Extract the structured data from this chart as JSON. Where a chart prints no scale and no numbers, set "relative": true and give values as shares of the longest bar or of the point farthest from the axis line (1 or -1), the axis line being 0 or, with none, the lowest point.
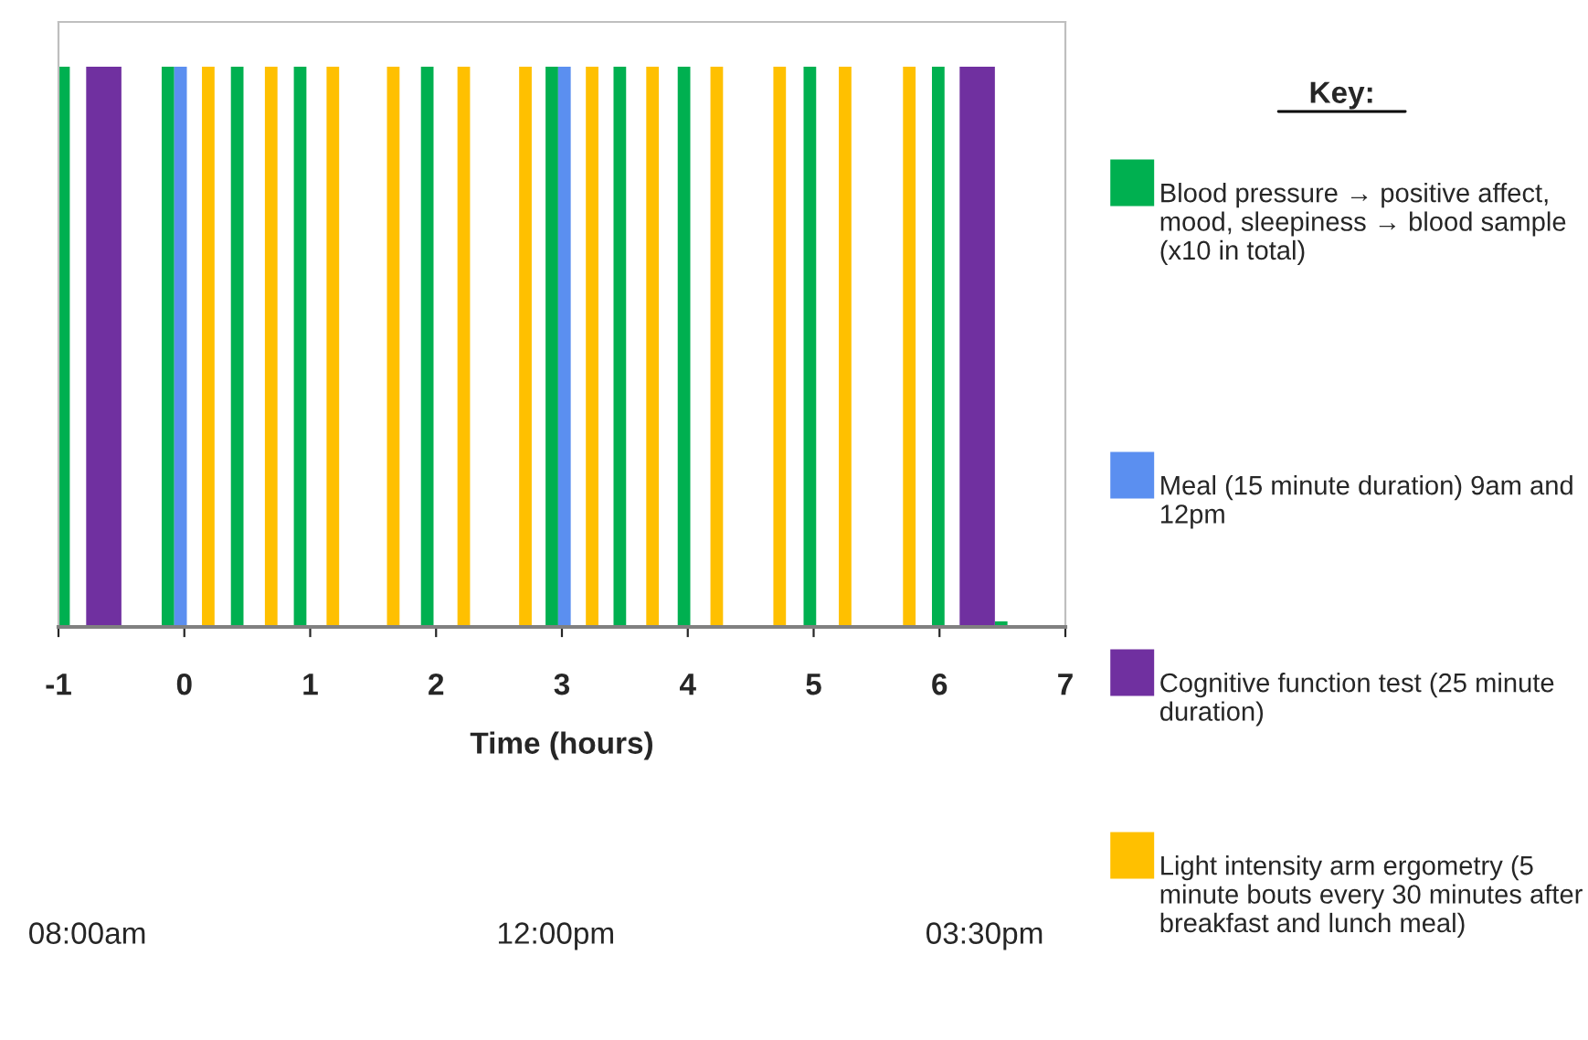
{
  "chart_data": {
    "type": "bar",
    "relative": true,
    "xlabel": "Time (hours)",
    "legend_title": "Key:",
    "legend": "right",
    "xlim": [
      -1,
      7
    ],
    "xticks": [
      -1,
      0,
      1,
      2,
      3,
      4,
      5,
      6,
      7
    ],
    "grid": false,
    "series": [
      {
        "name": "Blood pressure → positive affect, mood, sleepiness → blood sample (x10 in total)",
        "color": "#00b050",
        "x": [
          -0.96,
          -0.13,
          0.42,
          0.92,
          1.93,
          2.92,
          3.46,
          3.97,
          4.97,
          5.99,
          6.49
        ],
        "values": [
          1,
          1,
          1,
          1,
          1,
          1,
          1,
          1,
          1,
          1,
          0.01
        ]
      },
      {
        "name": "Meal (15 minute duration) 9am and 12pm",
        "color": "#5b8ff0",
        "x": [
          -0.03,
          3.02
        ],
        "values": [
          1,
          1
        ]
      },
      {
        "name": "Cognitive function test (25 minute duration)",
        "color": "#7030a0",
        "x": [
          -0.64,
          6.3
        ],
        "values": [
          1,
          1
        ]
      },
      {
        "name": "Light intensity arm ergometry (5 minute bouts every 30 minutes after breakfast and lunch meal)",
        "color": "#ffc000",
        "x": [
          0.19,
          0.69,
          1.18,
          1.66,
          2.22,
          2.71,
          3.24,
          3.72,
          4.23,
          4.73,
          5.25,
          5.76
        ],
        "values": [
          1,
          1,
          1,
          1,
          1,
          1,
          1,
          1,
          1,
          1,
          1,
          1
        ]
      }
    ],
    "annotations": [
      "08:00am",
      "12:00pm",
      "03:30pm"
    ]
  }
}
